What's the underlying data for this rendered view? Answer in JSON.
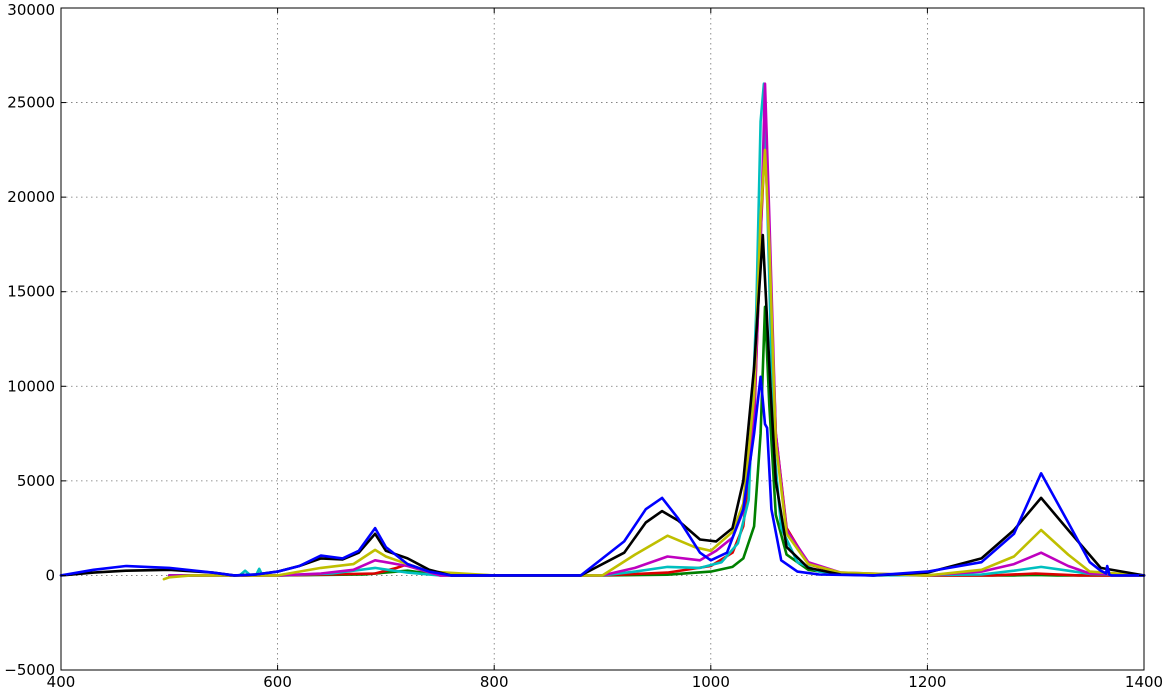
{
  "chart_data": {
    "type": "line",
    "title": "",
    "xlabel": "",
    "ylabel": "",
    "xlim": [
      400,
      1400
    ],
    "ylim": [
      -5000,
      30000
    ],
    "grid": true,
    "legend": "none",
    "x_ticks": [
      "400",
      "600",
      "800",
      "1000",
      "1200",
      "1400"
    ],
    "y_ticks": [
      "−5000",
      "0",
      "5000",
      "10000",
      "15000",
      "20000",
      "25000",
      "30000"
    ],
    "x_tick_values": [
      400,
      600,
      800,
      1000,
      1200,
      1400
    ],
    "y_tick_values": [
      -5000,
      0,
      5000,
      10000,
      15000,
      20000,
      25000,
      30000
    ],
    "series": [
      {
        "name": "green",
        "color": "#008000",
        "x": [
          500,
          600,
          680,
          710,
          720,
          740,
          800,
          900,
          960,
          1000,
          1020,
          1030,
          1040,
          1046,
          1050,
          1054,
          1060,
          1070,
          1090,
          1120,
          1200,
          1280,
          1300,
          1320,
          1400
        ],
        "y": [
          0,
          0,
          50,
          200,
          250,
          100,
          0,
          0,
          40,
          200,
          450,
          900,
          2600,
          7500,
          14200,
          9000,
          3200,
          1100,
          300,
          50,
          0,
          0,
          30,
          0,
          0
        ]
      },
      {
        "name": "red",
        "color": "#dd0000",
        "x": [
          500,
          600,
          690,
          710,
          720,
          735,
          750,
          800,
          900,
          960,
          1000,
          1020,
          1030,
          1040,
          1046,
          1050,
          1054,
          1060,
          1070,
          1090,
          1120,
          1200,
          1260,
          1300,
          1340,
          1400
        ],
        "y": [
          0,
          0,
          100,
          400,
          600,
          300,
          0,
          0,
          0,
          150,
          500,
          1200,
          2600,
          8000,
          18000,
          23000,
          17500,
          7500,
          2500,
          600,
          100,
          0,
          0,
          100,
          0,
          0
        ]
      },
      {
        "name": "cyan",
        "color": "#00bfbf",
        "x": [
          500,
          565,
          570,
          575,
          580,
          583,
          586,
          590,
          600,
          650,
          690,
          720,
          750,
          800,
          900,
          930,
          960,
          990,
          1010,
          1025,
          1035,
          1042,
          1046,
          1049,
          1052,
          1058,
          1065,
          1080,
          1100,
          1150,
          1250,
          1280,
          1305,
          1330,
          1350,
          1400
        ],
        "y": [
          0,
          0,
          250,
          0,
          0,
          350,
          0,
          0,
          0,
          100,
          400,
          150,
          0,
          0,
          0,
          200,
          450,
          400,
          700,
          1700,
          4000,
          14000,
          24000,
          26000,
          20000,
          7000,
          2500,
          700,
          200,
          0,
          50,
          250,
          450,
          250,
          80,
          0
        ]
      },
      {
        "name": "magenta",
        "color": "#bf00bf",
        "x": [
          500,
          600,
          640,
          670,
          690,
          700,
          710,
          720,
          750,
          800,
          900,
          930,
          960,
          990,
          1005,
          1020,
          1030,
          1040,
          1046,
          1050,
          1054,
          1060,
          1070,
          1090,
          1120,
          1200,
          1250,
          1280,
          1305,
          1330,
          1350,
          1400
        ],
        "y": [
          0,
          0,
          100,
          300,
          800,
          700,
          600,
          500,
          0,
          0,
          0,
          400,
          1000,
          800,
          1300,
          2000,
          3400,
          8500,
          17500,
          26000,
          19000,
          7500,
          2400,
          700,
          150,
          0,
          200,
          600,
          1200,
          500,
          100,
          0
        ]
      },
      {
        "name": "yellow",
        "color": "#bfbf00",
        "x": [
          495,
          500,
          520,
          600,
          640,
          670,
          690,
          700,
          710,
          720,
          740,
          800,
          900,
          930,
          960,
          985,
          1000,
          1020,
          1030,
          1040,
          1046,
          1050,
          1054,
          1060,
          1070,
          1090,
          1120,
          1200,
          1250,
          1280,
          1305,
          1330,
          1350,
          1400
        ],
        "y": [
          -200,
          -100,
          0,
          0,
          400,
          600,
          1350,
          1000,
          800,
          600,
          200,
          0,
          0,
          1100,
          2100,
          1500,
          1300,
          2300,
          3800,
          9500,
          19000,
          22500,
          17500,
          7000,
          2200,
          600,
          150,
          0,
          300,
          1000,
          2400,
          1100,
          200,
          0
        ]
      },
      {
        "name": "black",
        "color": "#000000",
        "x": [
          400,
          430,
          460,
          500,
          540,
          560,
          580,
          600,
          620,
          640,
          660,
          675,
          690,
          700,
          720,
          740,
          760,
          800,
          880,
          920,
          940,
          955,
          970,
          990,
          1005,
          1020,
          1030,
          1040,
          1048,
          1055,
          1060,
          1070,
          1090,
          1120,
          1150,
          1200,
          1250,
          1280,
          1305,
          1330,
          1360,
          1400
        ],
        "y": [
          0,
          150,
          250,
          300,
          150,
          0,
          50,
          200,
          500,
          900,
          850,
          1200,
          2200,
          1300,
          900,
          300,
          0,
          0,
          0,
          1200,
          2800,
          3400,
          2900,
          1900,
          1800,
          2500,
          5000,
          11000,
          18000,
          10000,
          5000,
          1500,
          400,
          50,
          0,
          150,
          900,
          2400,
          4100,
          2400,
          400,
          0
        ]
      },
      {
        "name": "blue",
        "color": "#0000ff",
        "x": [
          400,
          430,
          460,
          500,
          540,
          560,
          580,
          600,
          620,
          640,
          660,
          675,
          690,
          700,
          720,
          740,
          760,
          800,
          880,
          920,
          940,
          955,
          970,
          990,
          1000,
          1015,
          1030,
          1040,
          1046,
          1050,
          1052,
          1056,
          1065,
          1080,
          1100,
          1150,
          1200,
          1250,
          1280,
          1305,
          1330,
          1350,
          1360,
          1365,
          1366,
          1367,
          1368,
          1370,
          1400
        ],
        "y": [
          0,
          300,
          500,
          400,
          150,
          0,
          50,
          200,
          500,
          1050,
          900,
          1300,
          2500,
          1500,
          600,
          200,
          0,
          0,
          0,
          1800,
          3500,
          4100,
          3000,
          1200,
          800,
          1200,
          3500,
          7500,
          10500,
          8000,
          7800,
          3500,
          800,
          200,
          50,
          0,
          200,
          700,
          2200,
          5400,
          2800,
          700,
          250,
          100,
          500,
          300,
          50,
          0,
          0
        ]
      }
    ]
  }
}
